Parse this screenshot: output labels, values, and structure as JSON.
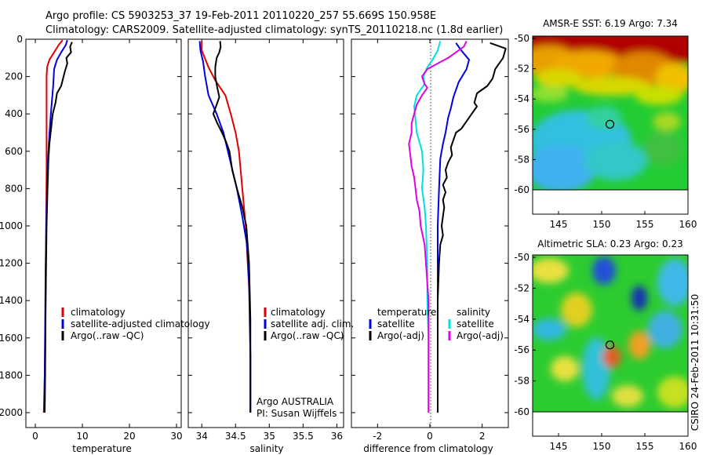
{
  "header": {
    "line1": "Argo profile: CS 5903253_37 19-Feb-2011 20110220_257 55.669S 150.958E",
    "line2": "Climatology: CARS2009. Satellite-adjusted climatology: synTS_20110218.nc (1.8d earlier)"
  },
  "footer": {
    "vertical_stamp": "CSIRO 24-Feb-2011 10:31:50"
  },
  "chart_data": [
    {
      "type": "line",
      "id": "temperature",
      "xlabel": "temperature",
      "ylabel": "",
      "xlim": [
        -2,
        31
      ],
      "ylim": [
        2080,
        0
      ],
      "xticks": [
        0,
        10,
        20,
        30
      ],
      "yticks": [
        0,
        200,
        400,
        600,
        800,
        1000,
        1200,
        1400,
        1600,
        1800,
        2000
      ],
      "legend": [
        "climatology",
        "satellite-adjusted climatology",
        "Argo(..raw -QC)"
      ],
      "series": [
        {
          "name": "climatology",
          "color": "#e00000",
          "points": [
            [
              5.8,
              5
            ],
            [
              5,
              30
            ],
            [
              4,
              70
            ],
            [
              3,
              110
            ],
            [
              2.5,
              150
            ],
            [
              2.4,
              200
            ],
            [
              2.4,
              300
            ],
            [
              2.4,
              500
            ],
            [
              2.4,
              700
            ],
            [
              2.3,
              1000
            ],
            [
              2.2,
              1400
            ],
            [
              2.0,
              1800
            ],
            [
              1.8,
              2000
            ]
          ]
        },
        {
          "name": "satellite-adjusted climatology",
          "color": "#0000e0",
          "points": [
            [
              6.8,
              5
            ],
            [
              6.5,
              30
            ],
            [
              5.5,
              70
            ],
            [
              4.6,
              110
            ],
            [
              4,
              160
            ],
            [
              3.8,
              250
            ],
            [
              3.3,
              400
            ],
            [
              2.9,
              550
            ],
            [
              2.6,
              700
            ],
            [
              2.4,
              900
            ],
            [
              2.2,
              1200
            ],
            [
              2.1,
              1500
            ],
            [
              2.0,
              1800
            ],
            [
              1.9,
              2000
            ]
          ]
        },
        {
          "name": "Argo(..raw -QC)",
          "color": "#000000",
          "points": [
            [
              7.8,
              15
            ],
            [
              7.4,
              40
            ],
            [
              7.6,
              70
            ],
            [
              6.6,
              100
            ],
            [
              6.8,
              130
            ],
            [
              6.3,
              170
            ],
            [
              5.9,
              210
            ],
            [
              5.5,
              250
            ],
            [
              4.6,
              290
            ],
            [
              4.3,
              340
            ],
            [
              3.7,
              400
            ],
            [
              3.0,
              560
            ],
            [
              2.8,
              640
            ],
            [
              2.6,
              800
            ],
            [
              2.4,
              1000
            ],
            [
              2.2,
              1400
            ],
            [
              2.1,
              1800
            ],
            [
              2.0,
              2000
            ]
          ]
        }
      ]
    },
    {
      "type": "line",
      "id": "salinity",
      "xlabel": "salinity",
      "ylabel": "",
      "xlim": [
        33.8,
        36.1
      ],
      "xticks": [
        34,
        34.5,
        35,
        35.5,
        36
      ],
      "xticklabels": [
        "34",
        "34.5",
        "35",
        "35.5",
        "36"
      ],
      "ylim": [
        2080,
        0
      ],
      "legend": [
        "climatology",
        "satellite adj. clim.",
        "Argo(..raw -QC)"
      ],
      "annotation": [
        "Argo AUSTRALIA",
        "PI: Susan Wijffels"
      ],
      "series": [
        {
          "name": "climatology",
          "color": "#e00000",
          "points": [
            [
              34.0,
              10
            ],
            [
              34.0,
              60
            ],
            [
              34.1,
              150
            ],
            [
              34.2,
              220
            ],
            [
              34.35,
              300
            ],
            [
              34.43,
              400
            ],
            [
              34.5,
              500
            ],
            [
              34.55,
              600
            ],
            [
              34.6,
              800
            ],
            [
              34.65,
              1000
            ],
            [
              34.68,
              1200
            ],
            [
              34.71,
              1400
            ],
            [
              34.72,
              1700
            ],
            [
              34.72,
              2000
            ]
          ]
        },
        {
          "name": "satellite adj. clim.",
          "color": "#0000e0",
          "points": [
            [
              33.97,
              10
            ],
            [
              33.98,
              60
            ],
            [
              34.02,
              120
            ],
            [
              34.05,
              200
            ],
            [
              34.1,
              300
            ],
            [
              34.22,
              400
            ],
            [
              34.32,
              500
            ],
            [
              34.42,
              650
            ],
            [
              34.52,
              800
            ],
            [
              34.6,
              950
            ],
            [
              34.67,
              1100
            ],
            [
              34.7,
              1300
            ],
            [
              34.71,
              1500
            ],
            [
              34.72,
              1700
            ],
            [
              34.72,
              2000
            ]
          ]
        },
        {
          "name": "Argo(..raw -QC)",
          "color": "#000000",
          "points": [
            [
              34.27,
              10
            ],
            [
              34.28,
              40
            ],
            [
              34.26,
              70
            ],
            [
              34.22,
              100
            ],
            [
              34.2,
              150
            ],
            [
              34.2,
              200
            ],
            [
              34.23,
              260
            ],
            [
              34.26,
              310
            ],
            [
              34.22,
              350
            ],
            [
              34.17,
              400
            ],
            [
              34.23,
              450
            ],
            [
              34.3,
              500
            ],
            [
              34.36,
              550
            ],
            [
              34.41,
              600
            ],
            [
              34.45,
              700
            ],
            [
              34.52,
              800
            ],
            [
              34.6,
              900
            ],
            [
              34.66,
              1000
            ],
            [
              34.7,
              1200
            ],
            [
              34.72,
              1500
            ],
            [
              34.72,
              2000
            ]
          ]
        }
      ]
    },
    {
      "type": "line",
      "id": "difference",
      "xlabel": "difference from climatology",
      "ylabel": "",
      "xlim": [
        -3,
        3
      ],
      "xticks": [
        -2,
        0,
        2
      ],
      "ylim": [
        2080,
        0
      ],
      "legend_temperature": {
        "title": "temperature",
        "items": [
          "satellite",
          "Argo(-adj)"
        ]
      },
      "legend_salinity": {
        "title": "salinity",
        "items": [
          "satellite",
          "Argo(-adj)"
        ]
      },
      "series": [
        {
          "name": "temperature satellite",
          "color": "#0000e0",
          "points": [
            [
              1.0,
              20
            ],
            [
              1.2,
              60
            ],
            [
              1.5,
              110
            ],
            [
              1.4,
              160
            ],
            [
              1.1,
              230
            ],
            [
              0.9,
              310
            ],
            [
              0.8,
              370
            ],
            [
              0.7,
              420
            ],
            [
              0.6,
              500
            ],
            [
              0.5,
              560
            ],
            [
              0.4,
              640
            ],
            [
              0.35,
              800
            ],
            [
              0.3,
              1000
            ],
            [
              0.3,
              1400
            ],
            [
              0.3,
              2000
            ]
          ]
        },
        {
          "name": "temperature Argo(-adj)",
          "color": "#000000",
          "points": [
            [
              2.3,
              20
            ],
            [
              2.9,
              50
            ],
            [
              2.8,
              100
            ],
            [
              2.5,
              160
            ],
            [
              2.4,
              210
            ],
            [
              2.2,
              250
            ],
            [
              1.8,
              290
            ],
            [
              1.7,
              340
            ],
            [
              1.8,
              360
            ],
            [
              1.6,
              400
            ],
            [
              1.4,
              440
            ],
            [
              1.3,
              460
            ],
            [
              1.2,
              480
            ],
            [
              1.0,
              500
            ],
            [
              0.9,
              540
            ],
            [
              0.8,
              580
            ],
            [
              0.85,
              620
            ],
            [
              0.7,
              660
            ],
            [
              0.6,
              700
            ],
            [
              0.65,
              740
            ],
            [
              0.5,
              780
            ],
            [
              0.6,
              820
            ],
            [
              0.5,
              860
            ],
            [
              0.55,
              900
            ],
            [
              0.45,
              1000
            ],
            [
              0.5,
              1050
            ],
            [
              0.4,
              1100
            ],
            [
              0.35,
              1200
            ],
            [
              0.3,
              1400
            ],
            [
              0.3,
              2000
            ]
          ]
        },
        {
          "name": "salinity satellite",
          "color": "#00e0e0",
          "points": [
            [
              0.4,
              10
            ],
            [
              0.3,
              60
            ],
            [
              0.1,
              110
            ],
            [
              -0.1,
              150
            ],
            [
              -0.25,
              200
            ],
            [
              -0.2,
              240
            ],
            [
              -0.5,
              300
            ],
            [
              -0.6,
              360
            ],
            [
              -0.55,
              430
            ],
            [
              -0.5,
              500
            ],
            [
              -0.3,
              600
            ],
            [
              -0.25,
              700
            ],
            [
              -0.3,
              800
            ],
            [
              -0.2,
              900
            ],
            [
              -0.15,
              1000
            ],
            [
              -0.1,
              1200
            ],
            [
              -0.1,
              1400
            ],
            [
              -0.05,
              1600
            ],
            [
              -0.05,
              2000
            ]
          ]
        },
        {
          "name": "salinity Argo(-adj)",
          "color": "#e000e0",
          "points": [
            [
              1.4,
              10
            ],
            [
              1.3,
              40
            ],
            [
              1.0,
              70
            ],
            [
              0.7,
              100
            ],
            [
              0.3,
              130
            ],
            [
              -0.1,
              160
            ],
            [
              -0.3,
              200
            ],
            [
              -0.2,
              240
            ],
            [
              -0.1,
              260
            ],
            [
              -0.3,
              300
            ],
            [
              -0.5,
              350
            ],
            [
              -0.6,
              400
            ],
            [
              -0.7,
              450
            ],
            [
              -0.7,
              500
            ],
            [
              -0.8,
              560
            ],
            [
              -0.75,
              620
            ],
            [
              -0.7,
              680
            ],
            [
              -0.6,
              740
            ],
            [
              -0.55,
              800
            ],
            [
              -0.5,
              860
            ],
            [
              -0.4,
              920
            ],
            [
              -0.35,
              1000
            ],
            [
              -0.2,
              1100
            ],
            [
              -0.15,
              1200
            ],
            [
              -0.05,
              1400
            ],
            [
              -0.05,
              2000
            ]
          ]
        }
      ]
    },
    {
      "type": "heatmap",
      "id": "sst",
      "title": "AMSR-E SST: 6.19 Argo: 7.34",
      "xlim": [
        142,
        160
      ],
      "ylim": [
        -61,
        -49.5
      ],
      "xticks": [
        145,
        150,
        155,
        160
      ],
      "yticks": [
        -50,
        -52,
        -54,
        -56,
        -58,
        -60
      ],
      "marker": {
        "lon": 150.958,
        "lat": -55.669
      }
    },
    {
      "type": "heatmap",
      "id": "sla",
      "title": "Altimetric SLA: 0.23 Argo: 0.23",
      "xlim": [
        142,
        160
      ],
      "ylim": [
        -61,
        -49.5
      ],
      "xticks": [
        145,
        150,
        155,
        160
      ],
      "yticks": [
        -50,
        -52,
        -54,
        -56,
        -58,
        -60
      ],
      "marker": {
        "lon": 150.958,
        "lat": -55.669
      }
    }
  ]
}
